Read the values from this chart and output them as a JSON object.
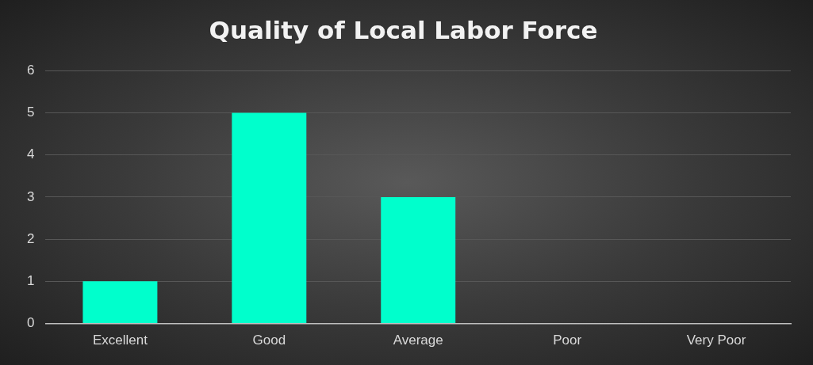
{
  "chart_data": {
    "type": "bar",
    "title": "Quality of Local Labor Force",
    "categories": [
      "Excellent",
      "Good",
      "Average",
      "Poor",
      "Very Poor"
    ],
    "values": [
      1,
      5,
      3,
      0,
      0
    ],
    "color": "#00ffcc",
    "ylim": [
      0,
      6
    ],
    "yticks": [
      0,
      1,
      2,
      3,
      4,
      5,
      6
    ],
    "grid": "y",
    "legend": false
  }
}
